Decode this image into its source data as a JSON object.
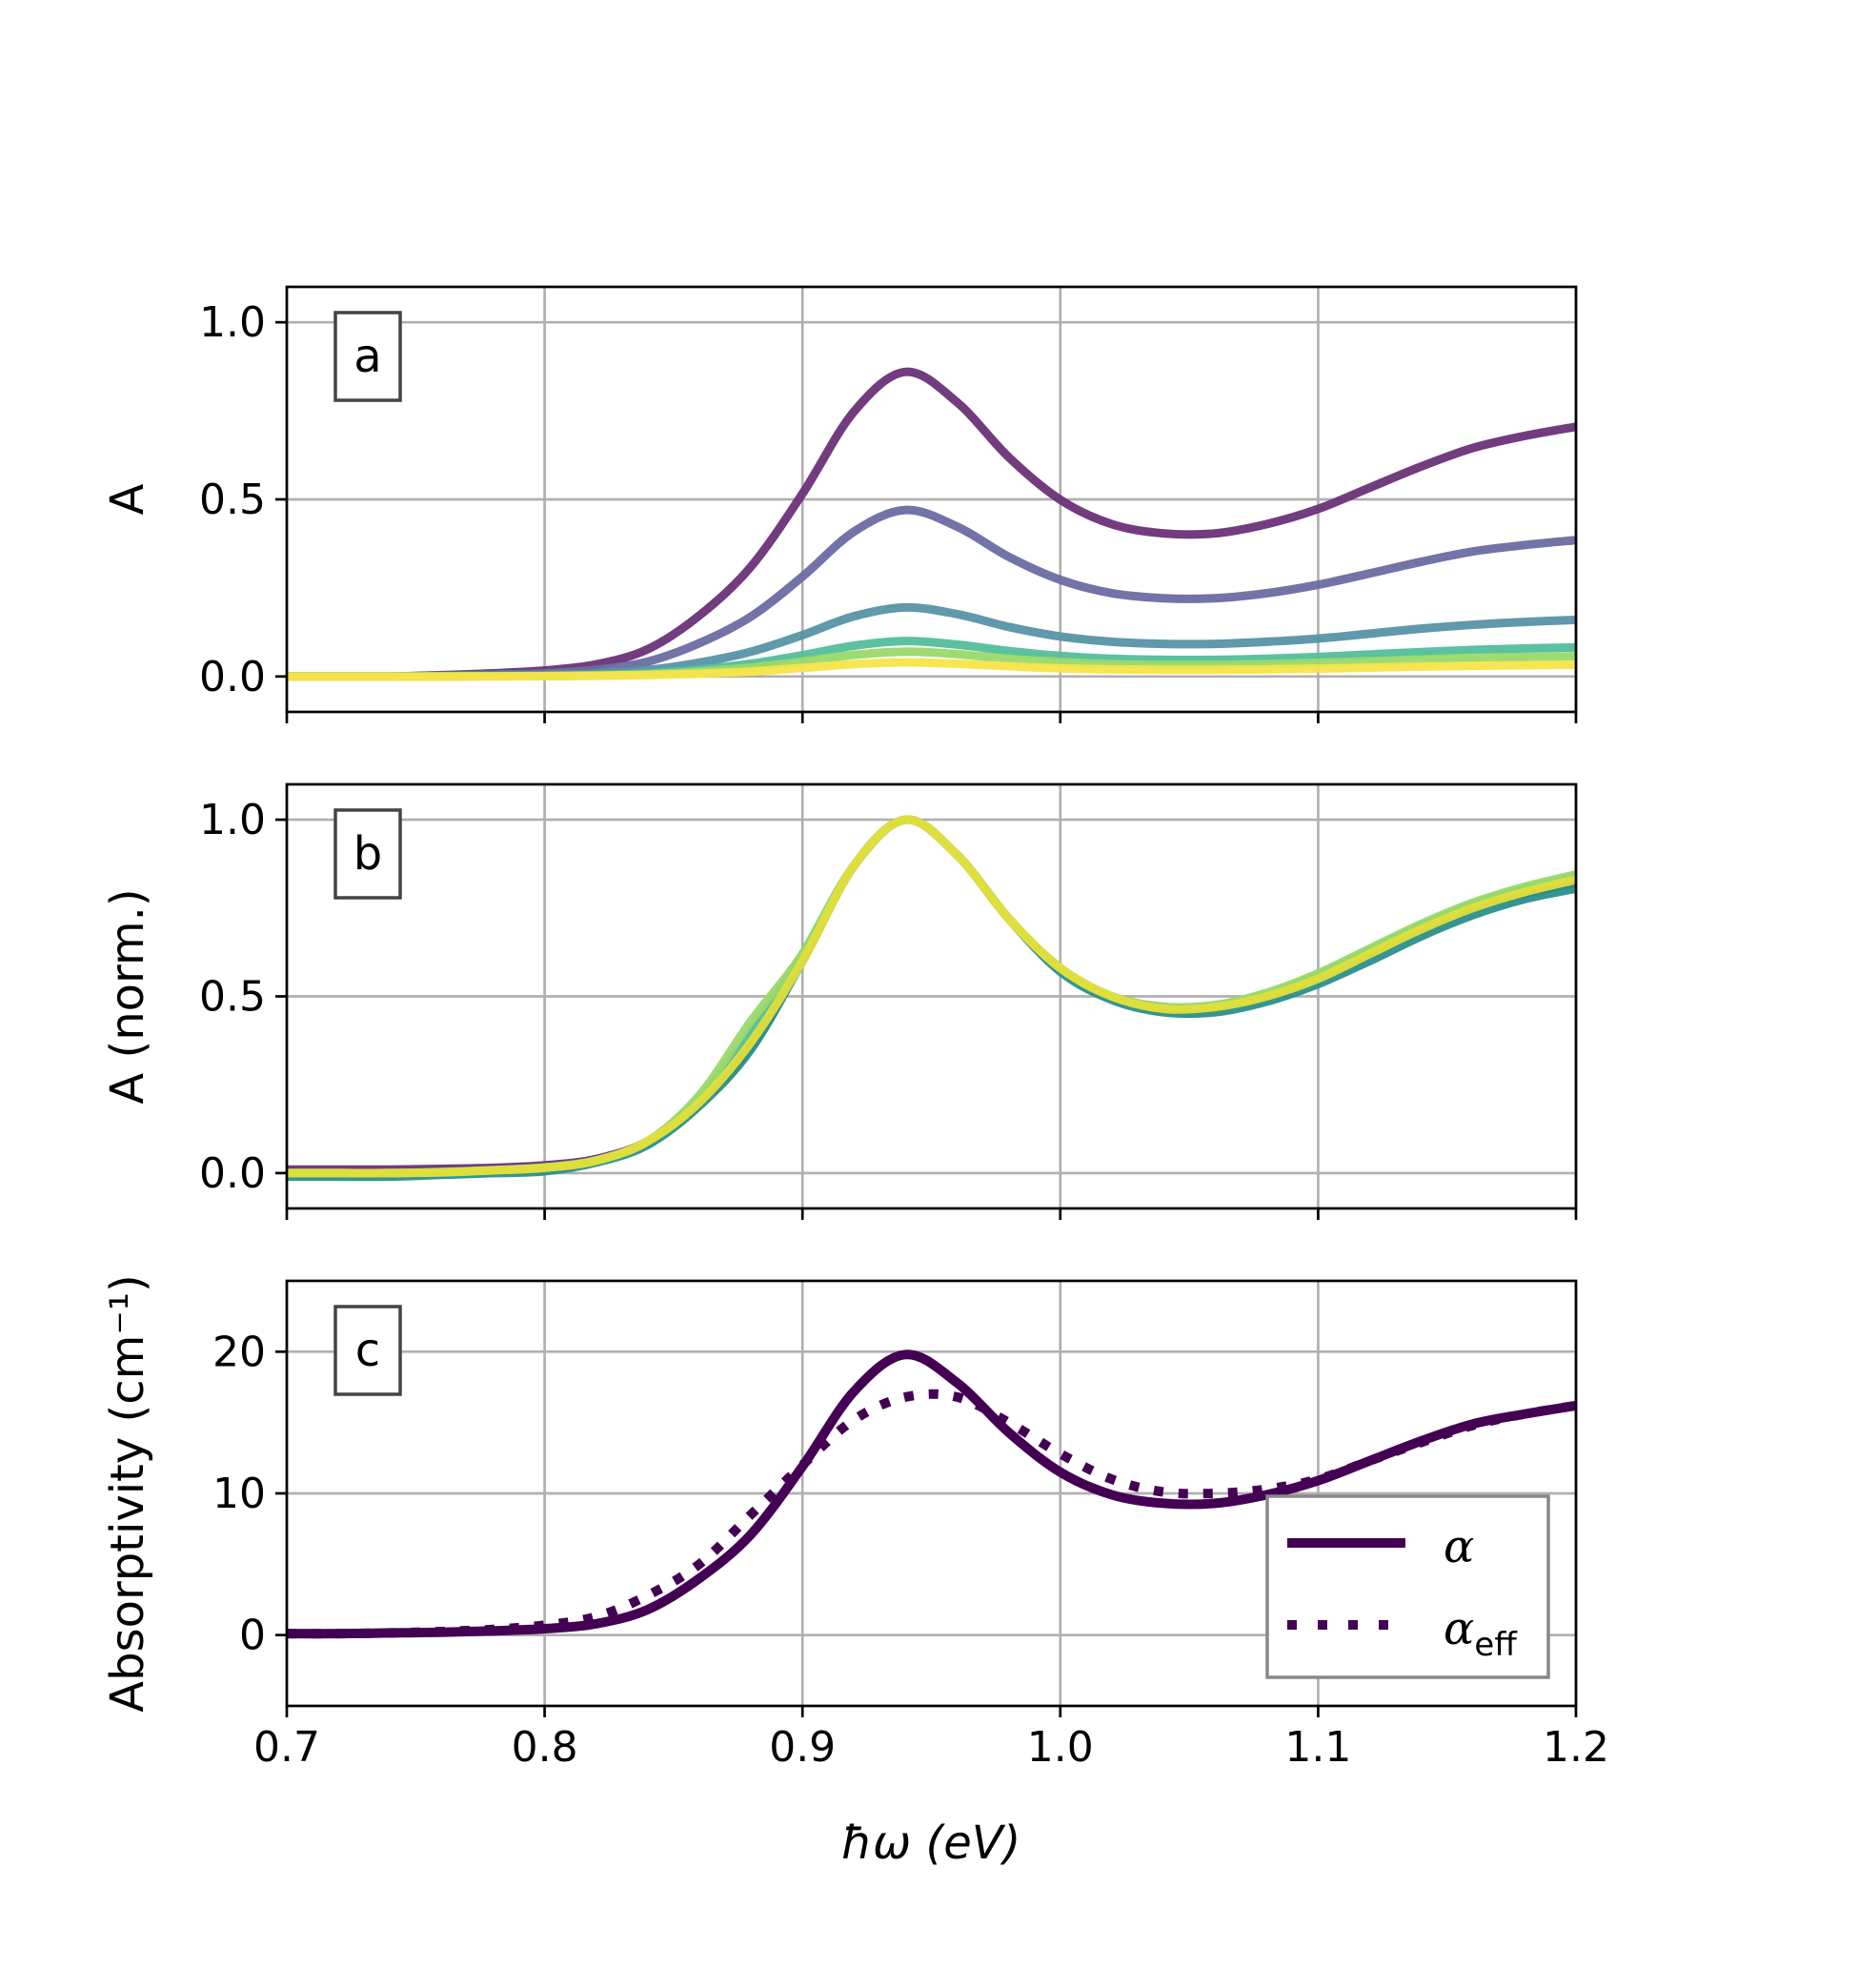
{
  "chart_data": [
    {
      "panel": "a",
      "type": "line",
      "ylabel": "A",
      "xlabel": "",
      "xlim": [
        0.7,
        1.2
      ],
      "ylim": [
        -0.1,
        1.1
      ],
      "xticks": [
        "0.7",
        "0.8",
        "0.9",
        "1.0",
        "1.1",
        "1.2"
      ],
      "yticks": [
        "0.0",
        "0.5",
        "1.0"
      ],
      "grid": true,
      "x": [
        0.7,
        0.72,
        0.74,
        0.76,
        0.78,
        0.8,
        0.82,
        0.84,
        0.86,
        0.88,
        0.9,
        0.92,
        0.94,
        0.96,
        0.98,
        1.0,
        1.02,
        1.04,
        1.06,
        1.08,
        1.1,
        1.12,
        1.14,
        1.16,
        1.18,
        1.2
      ],
      "series": [
        {
          "color": "#6a3178",
          "values": [
            0,
            0,
            0,
            0.004,
            0.009,
            0.017,
            0.034,
            0.077,
            0.172,
            0.31,
            0.516,
            0.748,
            0.86,
            0.774,
            0.619,
            0.499,
            0.43,
            0.404,
            0.404,
            0.43,
            0.473,
            0.533,
            0.593,
            0.645,
            0.679,
            0.705
          ]
        },
        {
          "color": "#6a6ba1",
          "values": [
            0,
            0,
            0,
            0.002,
            0.005,
            0.009,
            0.019,
            0.042,
            0.094,
            0.169,
            0.282,
            0.409,
            0.47,
            0.423,
            0.338,
            0.273,
            0.235,
            0.221,
            0.221,
            0.235,
            0.259,
            0.291,
            0.324,
            0.353,
            0.371,
            0.385
          ]
        },
        {
          "color": "#5694a6",
          "values": [
            0,
            0,
            0,
            0.001,
            0.002,
            0.004,
            0.008,
            0.018,
            0.039,
            0.07,
            0.117,
            0.17,
            0.195,
            0.176,
            0.14,
            0.113,
            0.098,
            0.092,
            0.092,
            0.098,
            0.107,
            0.121,
            0.135,
            0.146,
            0.154,
            0.16
          ]
        },
        {
          "color": "#52be9b",
          "values": [
            0,
            0,
            0,
            0,
            0.001,
            0.002,
            0.004,
            0.009,
            0.02,
            0.036,
            0.06,
            0.087,
            0.1,
            0.09,
            0.072,
            0.058,
            0.05,
            0.047,
            0.047,
            0.05,
            0.055,
            0.062,
            0.069,
            0.075,
            0.079,
            0.082
          ]
        },
        {
          "color": "#9ad96c",
          "values": [
            0,
            0,
            0,
            0,
            0.001,
            0.001,
            0.003,
            0.006,
            0.014,
            0.025,
            0.042,
            0.061,
            0.07,
            0.063,
            0.05,
            0.041,
            0.035,
            0.033,
            0.033,
            0.035,
            0.039,
            0.043,
            0.048,
            0.053,
            0.055,
            0.057
          ]
        },
        {
          "color": "#f5e54a",
          "values": [
            0,
            0,
            0,
            0,
            0,
            0.001,
            0.002,
            0.004,
            0.008,
            0.014,
            0.024,
            0.035,
            0.04,
            0.036,
            0.029,
            0.023,
            0.02,
            0.019,
            0.019,
            0.02,
            0.022,
            0.025,
            0.028,
            0.03,
            0.032,
            0.033
          ]
        }
      ]
    },
    {
      "panel": "b",
      "type": "line",
      "ylabel": "A (norm.)",
      "xlabel": "",
      "xlim": [
        0.7,
        1.2
      ],
      "ylim": [
        -0.1,
        1.1
      ],
      "xticks": [
        "0.7",
        "0.8",
        "0.9",
        "1.0",
        "1.1",
        "1.2"
      ],
      "yticks": [
        "0.0",
        "0.5",
        "1.0"
      ],
      "grid": true,
      "x": [
        0.7,
        0.72,
        0.74,
        0.76,
        0.78,
        0.8,
        0.82,
        0.84,
        0.86,
        0.88,
        0.9,
        0.92,
        0.94,
        0.96,
        0.98,
        1.0,
        1.02,
        1.04,
        1.06,
        1.08,
        1.1,
        1.12,
        1.14,
        1.16,
        1.18,
        1.2
      ],
      "series": [
        {
          "color": "#6a3178",
          "values": [
            0.01,
            0.01,
            0.01,
            0.012,
            0.015,
            0.022,
            0.04,
            0.09,
            0.2,
            0.36,
            0.6,
            0.87,
            1.0,
            0.9,
            0.72,
            0.58,
            0.5,
            0.47,
            0.47,
            0.5,
            0.55,
            0.62,
            0.69,
            0.75,
            0.79,
            0.82
          ]
        },
        {
          "color": "#2a8f8c",
          "values": [
            -0.01,
            -0.01,
            -0.01,
            -0.005,
            0,
            0.005,
            0.03,
            0.08,
            0.19,
            0.35,
            0.6,
            0.87,
            1.0,
            0.9,
            0.72,
            0.57,
            0.49,
            0.455,
            0.455,
            0.485,
            0.535,
            0.6,
            0.67,
            0.73,
            0.775,
            0.805
          ]
        },
        {
          "color": "#52be9b",
          "values": [
            0,
            0,
            0,
            0.002,
            0.008,
            0.016,
            0.036,
            0.09,
            0.21,
            0.4,
            0.62,
            0.87,
            1.0,
            0.9,
            0.72,
            0.58,
            0.5,
            0.47,
            0.475,
            0.505,
            0.56,
            0.63,
            0.7,
            0.76,
            0.805,
            0.84
          ]
        },
        {
          "color": "#9ad96c",
          "values": [
            0,
            0,
            0,
            0.003,
            0.008,
            0.016,
            0.036,
            0.09,
            0.22,
            0.43,
            0.62,
            0.87,
            1.0,
            0.9,
            0.72,
            0.58,
            0.5,
            0.47,
            0.475,
            0.51,
            0.565,
            0.635,
            0.705,
            0.765,
            0.81,
            0.845
          ]
        },
        {
          "color": "#e2df3a",
          "values": [
            0,
            0,
            0,
            0.002,
            0.008,
            0.015,
            0.035,
            0.09,
            0.2,
            0.37,
            0.6,
            0.87,
            1.0,
            0.9,
            0.72,
            0.58,
            0.5,
            0.465,
            0.47,
            0.5,
            0.55,
            0.62,
            0.69,
            0.75,
            0.795,
            0.83
          ]
        }
      ]
    },
    {
      "panel": "c",
      "type": "line",
      "ylabel": "Absorptivity (cm⁻¹)",
      "xlabel": "ħω (eV)",
      "xlim": [
        0.7,
        1.2
      ],
      "ylim": [
        -5,
        25
      ],
      "xticks": [
        "0.7",
        "0.8",
        "0.9",
        "1.0",
        "1.1",
        "1.2"
      ],
      "yticks": [
        "0",
        "10",
        "20"
      ],
      "grid": true,
      "legend": "lower-right",
      "x": [
        0.7,
        0.72,
        0.74,
        0.76,
        0.78,
        0.8,
        0.82,
        0.84,
        0.86,
        0.88,
        0.9,
        0.92,
        0.94,
        0.96,
        0.98,
        1.0,
        1.02,
        1.04,
        1.06,
        1.08,
        1.1,
        1.12,
        1.14,
        1.16,
        1.18,
        1.2
      ],
      "series": [
        {
          "name": "α",
          "style": "solid",
          "color": "#440154",
          "values": [
            0.1,
            0.1,
            0.15,
            0.2,
            0.3,
            0.45,
            0.8,
            1.8,
            4.0,
            7.1,
            11.9,
            17.2,
            19.8,
            17.8,
            14.3,
            11.5,
            9.9,
            9.3,
            9.3,
            9.9,
            10.9,
            12.3,
            13.7,
            14.9,
            15.6,
            16.2
          ]
        },
        {
          "name": "α",
          "subscript": "eff",
          "style": "dotted",
          "color": "#440154",
          "values": [
            0.1,
            0.1,
            0.15,
            0.25,
            0.4,
            0.7,
            1.3,
            2.8,
            5.0,
            8.5,
            12.0,
            15.2,
            16.8,
            16.8,
            15.0,
            12.8,
            11.0,
            10.1,
            10.0,
            10.3,
            11.0,
            12.3,
            13.6,
            14.8,
            15.6,
            16.2
          ]
        }
      ]
    }
  ],
  "panel_labels": [
    "a",
    "b",
    "c"
  ]
}
